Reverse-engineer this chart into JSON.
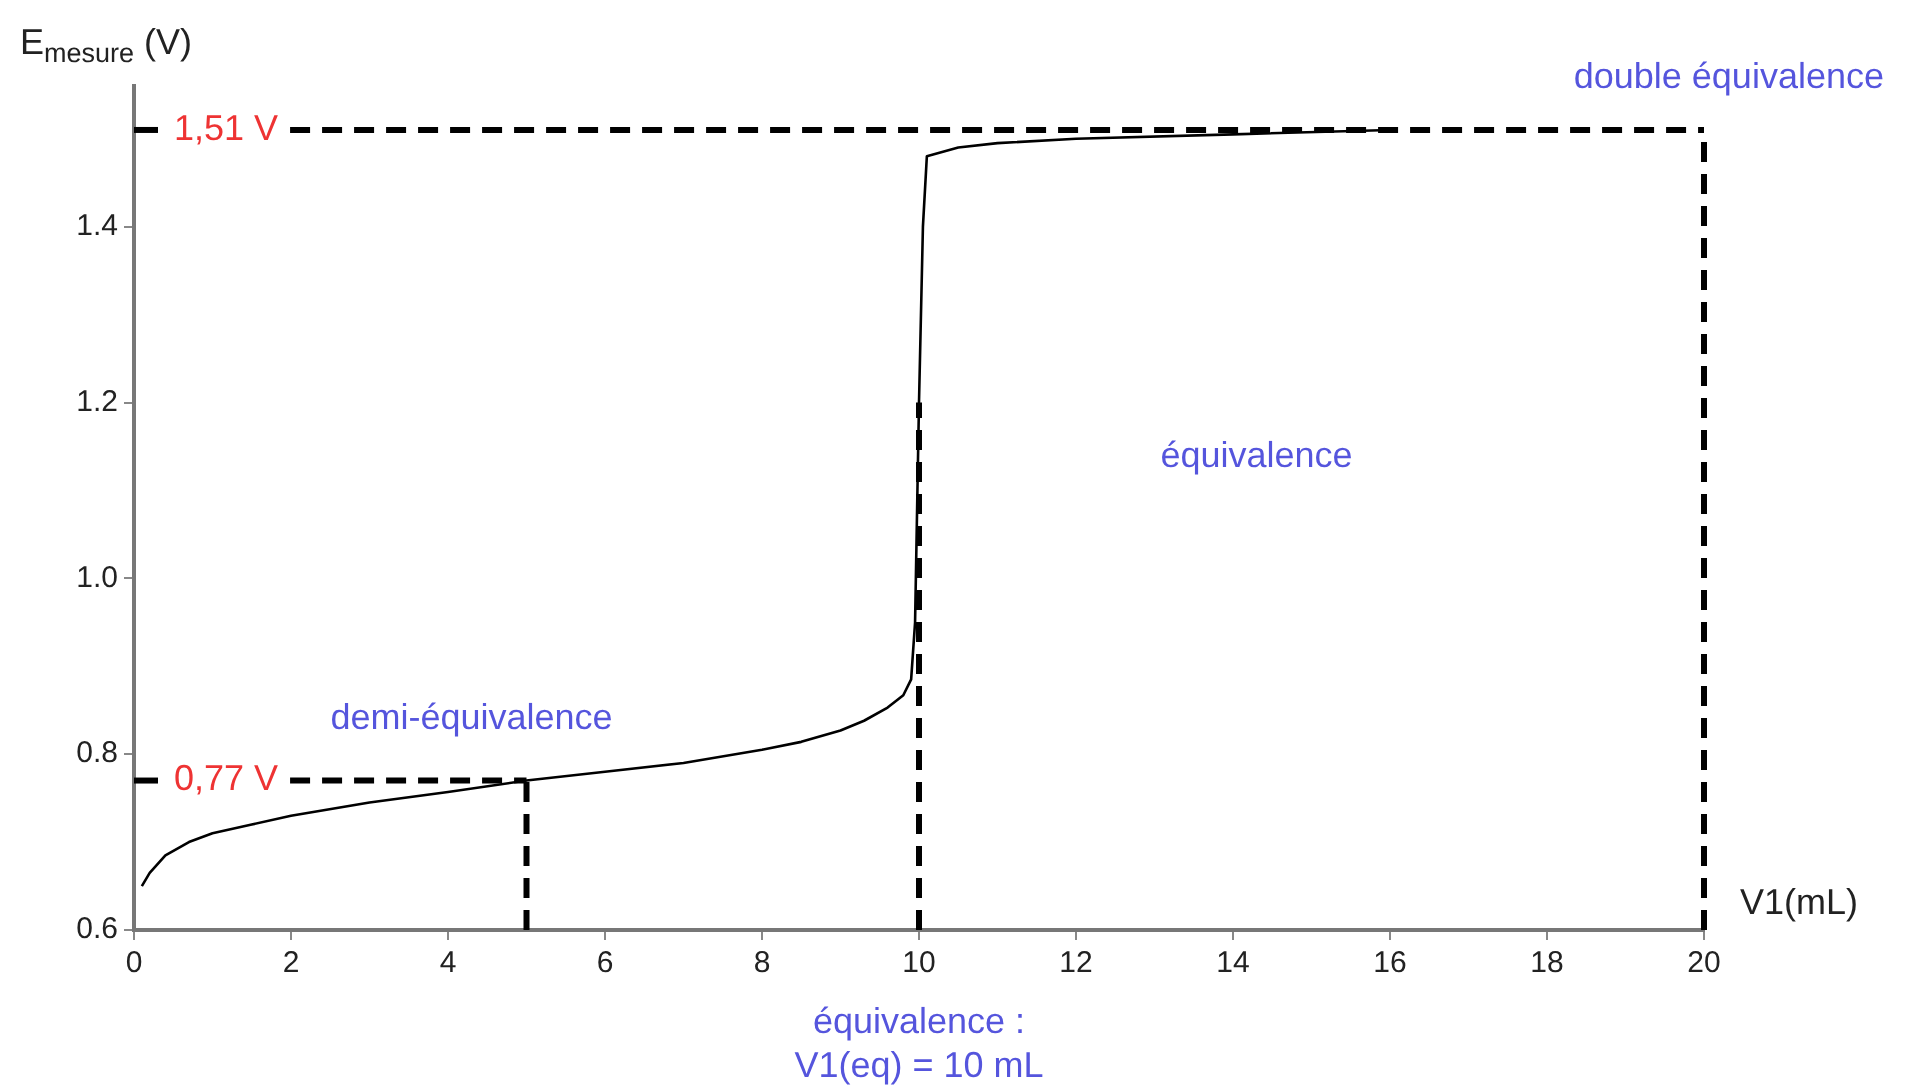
{
  "chart_data": {
    "type": "line",
    "xlabel": "V1(mL)",
    "ylabel": "E$_{mesure}$ (V)",
    "x": [
      0.1,
      0.2,
      0.4,
      0.7,
      1,
      1.5,
      2,
      3,
      4,
      5,
      6,
      7,
      8,
      8.5,
      9,
      9.3,
      9.6,
      9.8,
      9.9,
      9.95,
      10,
      10.05,
      10.1,
      10.5,
      11,
      12,
      14,
      16
    ],
    "series": [
      {
        "color": "#000000",
        "values": [
          0.65,
          0.665,
          0.685,
          0.7,
          0.71,
          0.72,
          0.73,
          0.745,
          0.757,
          0.77,
          0.78,
          0.79,
          0.805,
          0.814,
          0.827,
          0.838,
          0.853,
          0.867,
          0.885,
          0.95,
          1.2,
          1.4,
          1.48,
          1.49,
          1.495,
          1.5,
          1.505,
          1.51
        ]
      }
    ],
    "xlim": [
      0,
      20
    ],
    "xticks": [
      0,
      2,
      4,
      6,
      8,
      10,
      12,
      14,
      16,
      18,
      20
    ],
    "ylim": [
      0.6,
      1.56
    ],
    "yticks": [
      0.6,
      0.8,
      {
        "value": 1,
        "label": "1.0"
      },
      1.2,
      1.4
    ],
    "grid": false,
    "legend": false,
    "marker": "none",
    "line_style": "solid",
    "ref_lines": [
      {
        "axis": "y",
        "value": 1.51,
        "label": "1,51 V",
        "line_style": "dashed"
      },
      {
        "axis": "y",
        "value": 0.77,
        "label": "0,77 V",
        "line_style": "dashed"
      },
      {
        "axis": "x",
        "value": 5,
        "label": null,
        "line_style": "dashed"
      },
      {
        "axis": "x",
        "value": 10,
        "label": null,
        "line_style": "dashed"
      },
      {
        "axis": "x",
        "value": 20,
        "label": "double équivalence",
        "line_style": "dashed"
      }
    ],
    "annotations": [
      "demi-équivalence",
      "équivalence",
      "équivalence :\nV1(eq) = 10 mL"
    ]
  }
}
